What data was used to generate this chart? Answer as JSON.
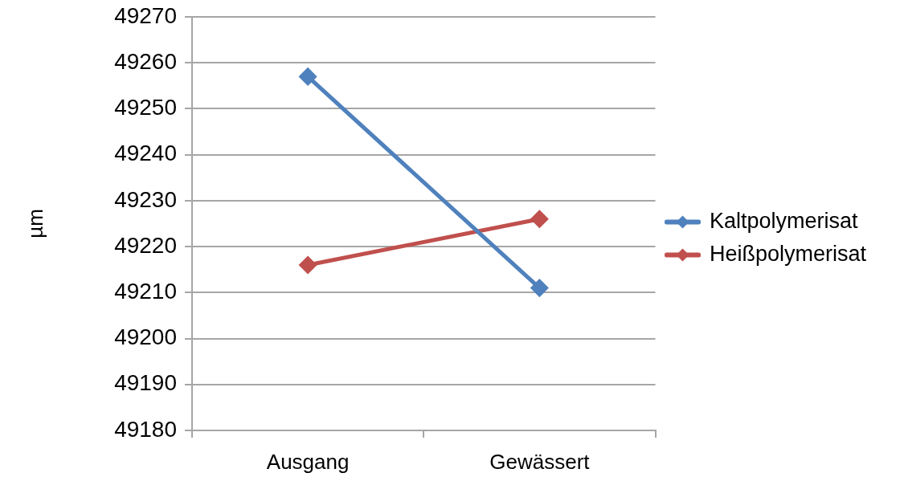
{
  "chart_data": {
    "type": "line",
    "ylabel": "µm",
    "categories": [
      "Ausgang",
      "Gewässert"
    ],
    "series": [
      {
        "name": "Kaltpolymerisat",
        "color": "#4f81bd",
        "values": [
          49257,
          49211
        ]
      },
      {
        "name": "Heißpolymerisat",
        "color": "#c0504d",
        "values": [
          49216,
          49226
        ]
      }
    ],
    "ylim": [
      49180,
      49270
    ],
    "yticks": [
      49180,
      49190,
      49200,
      49210,
      49220,
      49230,
      49240,
      49250,
      49260,
      49270
    ],
    "grid": "y",
    "legend": "right",
    "marker": "diamond"
  }
}
